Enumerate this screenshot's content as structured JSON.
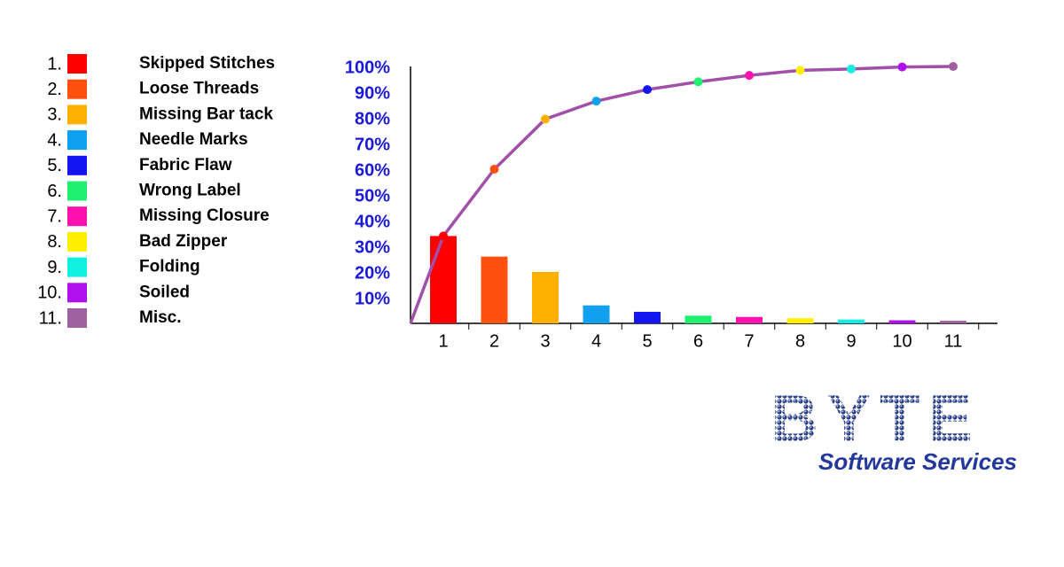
{
  "chart_data": {
    "type": "pareto",
    "categories": [
      "1",
      "2",
      "3",
      "4",
      "5",
      "6",
      "7",
      "8",
      "9",
      "10",
      "11"
    ],
    "legend": [
      {
        "number": "1.",
        "name": "Skipped Stitches"
      },
      {
        "number": "2.",
        "name": "Loose Threads"
      },
      {
        "number": "3.",
        "name": "Missing Bar tack"
      },
      {
        "number": "4.",
        "name": "Needle Marks"
      },
      {
        "number": "5.",
        "name": "Fabric Flaw"
      },
      {
        "number": "6.",
        "name": "Wrong Label"
      },
      {
        "number": "7.",
        "name": "Missing Closure"
      },
      {
        "number": "8.",
        "name": "Bad Zipper"
      },
      {
        "number": "9.",
        "name": "Folding"
      },
      {
        "number": "10.",
        "name": "Soiled"
      },
      {
        "number": "11.",
        "name": "Misc."
      }
    ],
    "colors": [
      "#ff0000",
      "#ff5010",
      "#ffb000",
      "#10a0f0",
      "#1414f0",
      "#20f070",
      "#ff10b0",
      "#ffee00",
      "#10f0e0",
      "#b010f0",
      "#a060a0"
    ],
    "values": [
      34,
      26,
      20,
      7,
      4.5,
      3,
      2.5,
      2,
      1.5,
      1.2,
      1
    ],
    "cumulative": {
      "values": [
        34,
        60,
        79.5,
        86.5,
        91,
        94,
        96.5,
        98.5,
        99,
        99.8,
        100
      ],
      "color": "#a050a8"
    },
    "ylim": [
      0,
      100
    ],
    "yticks": [
      {
        "value": 10,
        "label": "10%"
      },
      {
        "value": 20,
        "label": "20%"
      },
      {
        "value": 30,
        "label": "30%"
      },
      {
        "value": 40,
        "label": "40%"
      },
      {
        "value": 50,
        "label": "50%"
      },
      {
        "value": 60,
        "label": "60%"
      },
      {
        "value": 70,
        "label": "70%"
      },
      {
        "value": 80,
        "label": "80%"
      },
      {
        "value": 90,
        "label": "90%"
      },
      {
        "value": 100,
        "label": "100%"
      }
    ]
  },
  "logo": {
    "title": "BYTE",
    "subtitle": "Software Services"
  }
}
